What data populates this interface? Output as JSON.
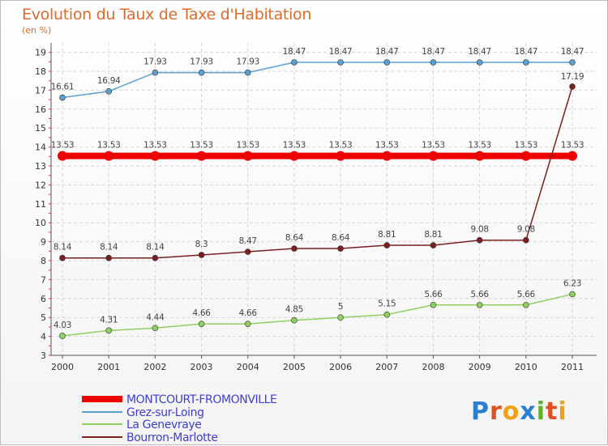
{
  "chart_data": {
    "type": "line",
    "title": "Evolution du Taux de Taxe d'Habitation",
    "subtitle": "(en %)",
    "x": [
      "2000",
      "2001",
      "2002",
      "2003",
      "2004",
      "2005",
      "2006",
      "2007",
      "2008",
      "2009",
      "2010",
      "2011"
    ],
    "yticks": [
      3,
      4,
      5,
      6,
      7,
      8,
      9,
      10,
      11,
      12,
      13,
      14,
      15,
      16,
      17,
      18,
      19
    ],
    "ylim": [
      3,
      19
    ],
    "grid": true,
    "legend_position": "bottom-left",
    "series": [
      {
        "name": "MONTCOURT-FROMONVILLE",
        "color": "#ee0000",
        "values": [
          13.53,
          13.53,
          13.53,
          13.53,
          13.53,
          13.53,
          13.53,
          13.53,
          13.53,
          13.53,
          13.53,
          13.53
        ],
        "labels": [
          "13.53",
          "13.53",
          "13.53",
          "13.53",
          "13.53",
          "13.53",
          "13.53",
          "13.53",
          "13.53",
          "13.53",
          "13.53",
          "13.53"
        ]
      },
      {
        "name": "Grez-sur-Loing",
        "color": "#5ba0d0",
        "values": [
          16.61,
          16.94,
          17.93,
          17.93,
          17.93,
          18.47,
          18.47,
          18.47,
          18.47,
          18.47,
          18.47,
          18.47
        ],
        "labels": [
          "16.61",
          "16.94",
          "17.93",
          "17.93",
          "17.93",
          "18.47",
          "18.47",
          "18.47",
          "18.47",
          "18.47",
          "18.47",
          "18.47"
        ]
      },
      {
        "name": "La Genevraye",
        "color": "#90d060",
        "values": [
          4.03,
          4.31,
          4.44,
          4.66,
          4.66,
          4.85,
          5.0,
          5.15,
          5.66,
          5.66,
          5.66,
          6.23
        ],
        "labels": [
          "4.03",
          "4.31",
          "4.44",
          "4.66",
          "4.66",
          "4.85",
          "5",
          "5.15",
          "5.66",
          "5.66",
          "5.66",
          "6.23"
        ]
      },
      {
        "name": "Bourron-Marlotte",
        "color": "#7a2020",
        "values": [
          8.14,
          8.14,
          8.14,
          8.3,
          8.47,
          8.64,
          8.64,
          8.81,
          8.81,
          9.08,
          9.08,
          17.19
        ],
        "labels": [
          "8.14",
          "8.14",
          "8.14",
          "8.3",
          "8.47",
          "8.64",
          "8.64",
          "8.81",
          "8.81",
          "9.08",
          "9.08",
          "17.19"
        ]
      }
    ]
  },
  "logo": {
    "letters": [
      "P",
      "r",
      "o",
      "x",
      "i",
      "t",
      "i"
    ],
    "colors": [
      "#2a7fd0",
      "#e05020",
      "#f0a010",
      "#2a7fd0",
      "#60b030",
      "#e05020",
      "#f0a010"
    ]
  }
}
